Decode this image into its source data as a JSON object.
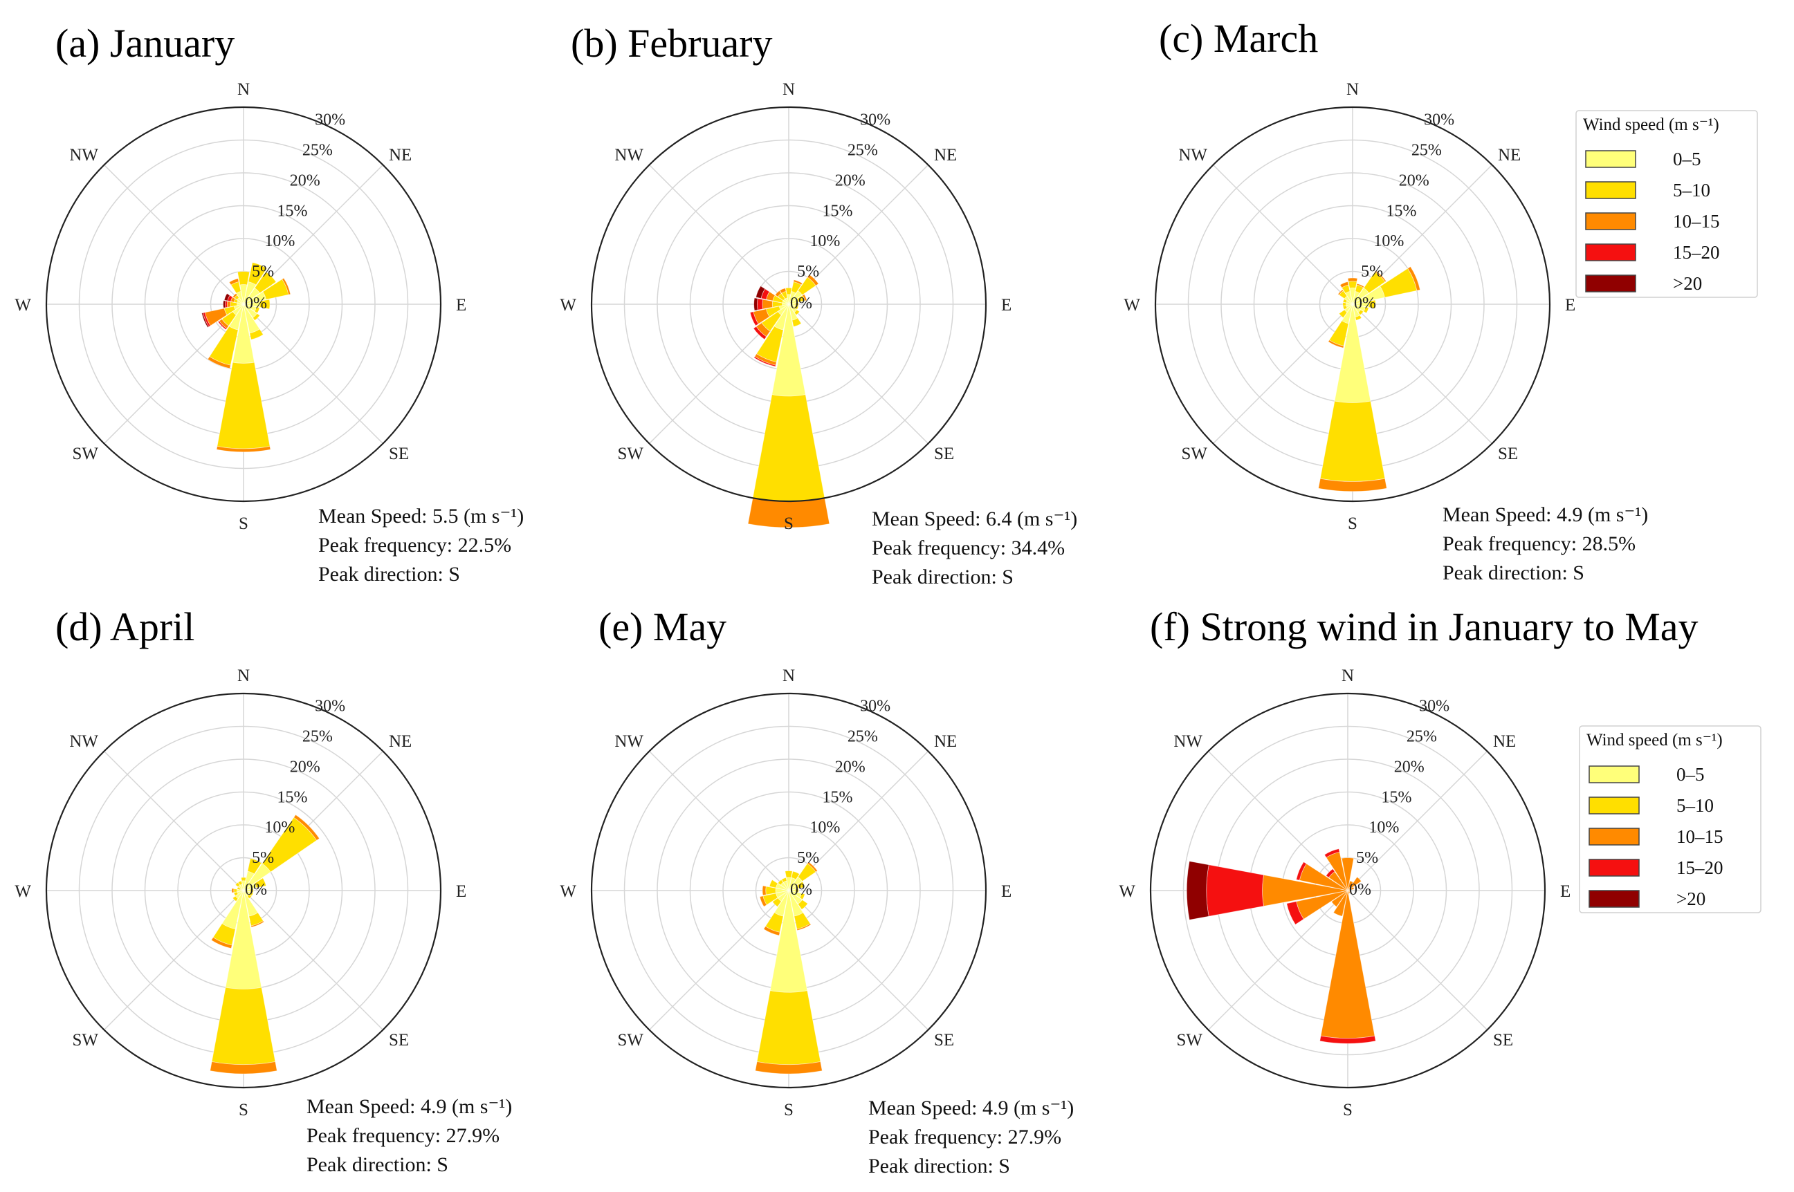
{
  "speed_bins": [
    {
      "label": "0–5",
      "color": "#ffff7a"
    },
    {
      "label": "5–10",
      "color": "#ffdf00"
    },
    {
      "label": "10–15",
      "color": "#ff8a00"
    },
    {
      "label": "15–20",
      "color": "#f51010"
    },
    {
      "label": ">20",
      "color": "#900000"
    }
  ],
  "direction_labels": [
    "N",
    "NE",
    "E",
    "SE",
    "S",
    "SW",
    "W",
    "NW"
  ],
  "radial_labels": [
    "0%",
    "5%",
    "10%",
    "15%",
    "20%",
    "25%",
    "30%"
  ],
  "legend_title": "Wind speed (m s⁻¹)",
  "chart_data": [
    {
      "type": "windrose",
      "title": "(a) January",
      "rmax": 30,
      "stats": [
        "Mean Speed: 5.5 (m s⁻¹)",
        "Peak frequency: 22.5%",
        "Peak direction: S"
      ],
      "directions_deg": [
        0,
        22.5,
        45,
        67.5,
        90,
        112.5,
        135,
        157.5,
        180,
        202.5,
        225,
        247.5,
        270,
        292.5,
        315,
        337.5
      ],
      "series": [
        {
          "bin": "0–5",
          "values": [
            3.0,
            3.5,
            3.0,
            3.5,
            2.5,
            2.0,
            2.5,
            4.5,
            9.0,
            4.0,
            2.0,
            1.5,
            1.0,
            1.0,
            1.2,
            2.0
          ]
        },
        {
          "bin": "5–10",
          "values": [
            2.0,
            3.0,
            3.0,
            3.5,
            1.5,
            0.5,
            0.5,
            1.0,
            13.0,
            5.5,
            2.0,
            1.5,
            1.0,
            0.5,
            0.5,
            1.5
          ]
        },
        {
          "bin": "10–15",
          "values": [
            0,
            0,
            0,
            0.3,
            0,
            0,
            0,
            0,
            0.5,
            0.5,
            0.5,
            3.0,
            0.5,
            0.5,
            0.3,
            0.5
          ]
        },
        {
          "bin": "15–20",
          "values": [
            0,
            0,
            0,
            0,
            0,
            0,
            0,
            0,
            0,
            0,
            0.2,
            0.3,
            0.3,
            0.5,
            0,
            0
          ]
        },
        {
          "bin": ">20",
          "values": [
            0,
            0,
            0,
            0,
            0,
            0,
            0,
            0,
            0,
            0,
            0,
            0.2,
            0.3,
            0.5,
            0,
            0
          ]
        }
      ]
    },
    {
      "type": "windrose",
      "title": "(b) February",
      "rmax": 30,
      "stats": [
        "Mean Speed: 6.4 (m s⁻¹)",
        "Peak frequency: 34.4%",
        "Peak direction: S"
      ],
      "directions_deg": [
        0,
        22.5,
        45,
        67.5,
        90,
        112.5,
        135,
        157.5,
        180,
        202.5,
        225,
        247.5,
        270,
        292.5,
        315,
        337.5
      ],
      "series": [
        {
          "bin": "0–5",
          "values": [
            1.5,
            2.0,
            2.5,
            1.5,
            1.0,
            1.0,
            1.5,
            2.5,
            14.0,
            4.0,
            2.0,
            1.5,
            1.0,
            1.0,
            1.0,
            1.0
          ]
        },
        {
          "bin": "5–10",
          "values": [
            1.0,
            1.5,
            2.5,
            1.0,
            0.5,
            0.5,
            0.5,
            1.0,
            20.0,
            5.0,
            3.0,
            2.0,
            1.5,
            1.5,
            1.0,
            1.0
          ]
        },
        {
          "bin": "10–15",
          "values": [
            0,
            0.3,
            0.5,
            0.3,
            0,
            0,
            0,
            0,
            0.4,
            0.5,
            1.0,
            2.0,
            1.5,
            1.0,
            0.5,
            0.5
          ]
        },
        {
          "bin": "15–20",
          "values": [
            0,
            0,
            0,
            0,
            0,
            0,
            0,
            0,
            0,
            0.2,
            0.5,
            0.5,
            0.8,
            0.8,
            0,
            0
          ]
        },
        {
          "bin": ">20",
          "values": [
            0,
            0,
            0,
            0,
            0,
            0,
            0,
            0,
            0,
            0,
            0,
            0,
            0.5,
            0.8,
            0,
            0
          ]
        }
      ]
    },
    {
      "type": "windrose",
      "title": "(c) March",
      "rmax": 30,
      "stats": [
        "Mean Speed: 4.9 (m s⁻¹)",
        "Peak frequency: 28.5%",
        "Peak direction: S"
      ],
      "directions_deg": [
        0,
        22.5,
        45,
        67.5,
        90,
        112.5,
        135,
        157.5,
        180,
        202.5,
        225,
        247.5,
        270,
        292.5,
        315,
        337.5
      ],
      "series": [
        {
          "bin": "0–5",
          "values": [
            2.5,
            2.0,
            3.0,
            5.0,
            2.5,
            2.0,
            1.5,
            2.0,
            15.0,
            3.0,
            1.5,
            1.0,
            1.0,
            1.0,
            1.5,
            2.0
          ]
        },
        {
          "bin": "5–10",
          "values": [
            1.0,
            1.0,
            3.0,
            5.0,
            1.0,
            0.5,
            0.5,
            0.5,
            12.0,
            3.5,
            1.0,
            0.5,
            0.5,
            0.5,
            1.0,
            1.0
          ]
        },
        {
          "bin": "10–15",
          "values": [
            0.5,
            0.2,
            0.2,
            0.5,
            0,
            0,
            0,
            0,
            1.5,
            0.3,
            0,
            0,
            0,
            0,
            0.2,
            0.5
          ]
        },
        {
          "bin": "15–20",
          "values": [
            0,
            0,
            0,
            0,
            0,
            0,
            0,
            0,
            0,
            0,
            0,
            0,
            0,
            0,
            0,
            0
          ]
        },
        {
          "bin": ">20",
          "values": [
            0,
            0,
            0,
            0,
            0,
            0,
            0,
            0,
            0,
            0,
            0,
            0,
            0,
            0,
            0,
            0
          ]
        }
      ]
    },
    {
      "type": "windrose",
      "title": "(d) April",
      "rmax": 30,
      "stats": [
        "Mean Speed: 4.9 (m s⁻¹)",
        "Peak frequency: 27.9%",
        "Peak direction: S"
      ],
      "directions_deg": [
        0,
        22.5,
        45,
        67.5,
        90,
        112.5,
        135,
        157.5,
        180,
        202.5,
        225,
        247.5,
        270,
        292.5,
        315,
        337.5
      ],
      "series": [
        {
          "bin": "0–5",
          "values": [
            1.5,
            3.0,
            5.0,
            2.0,
            1.0,
            1.0,
            1.0,
            4.0,
            15.0,
            6.0,
            1.5,
            1.0,
            1.0,
            0.5,
            1.0,
            1.0
          ]
        },
        {
          "bin": "5–10",
          "values": [
            0.5,
            2.0,
            8.5,
            1.5,
            0.5,
            0.5,
            0.5,
            1.5,
            11.5,
            2.5,
            0.5,
            0.5,
            0.5,
            0.5,
            0.5,
            0.5
          ]
        },
        {
          "bin": "10–15",
          "values": [
            0,
            0,
            0.5,
            0,
            0,
            0,
            0,
            0.2,
            1.4,
            0.5,
            0,
            0,
            0.3,
            0,
            0,
            0
          ]
        },
        {
          "bin": "15–20",
          "values": [
            0,
            0,
            0,
            0,
            0,
            0,
            0,
            0,
            0,
            0,
            0,
            0,
            0,
            0,
            0,
            0
          ]
        },
        {
          "bin": ">20",
          "values": [
            0,
            0,
            0,
            0,
            0,
            0,
            0,
            0,
            0,
            0,
            0,
            0,
            0,
            0,
            0,
            0
          ]
        }
      ]
    },
    {
      "type": "windrose",
      "title": "(e) May",
      "rmax": 30,
      "stats": [
        "Mean Speed: 4.9 (m s⁻¹)",
        "Peak frequency: 27.9%",
        "Peak direction: S"
      ],
      "directions_deg": [
        0,
        22.5,
        45,
        67.5,
        90,
        112.5,
        135,
        157.5,
        180,
        202.5,
        225,
        247.5,
        270,
        292.5,
        315,
        337.5
      ],
      "series": [
        {
          "bin": "0–5",
          "values": [
            2.0,
            2.0,
            2.5,
            1.5,
            1.0,
            2.0,
            2.5,
            4.0,
            15.5,
            4.0,
            2.0,
            2.0,
            2.0,
            2.0,
            1.5,
            1.5
          ]
        },
        {
          "bin": "5–10",
          "values": [
            1.0,
            1.0,
            2.5,
            1.0,
            0.5,
            0.5,
            1.0,
            2.0,
            11.0,
            2.5,
            1.0,
            2.0,
            1.5,
            1.0,
            0.5,
            0.5
          ]
        },
        {
          "bin": "10–15",
          "values": [
            0,
            0,
            0.3,
            0,
            0,
            0,
            0,
            0.2,
            1.4,
            0.5,
            0,
            0.5,
            0.5,
            0,
            0,
            0
          ]
        },
        {
          "bin": "15–20",
          "values": [
            0,
            0,
            0,
            0,
            0,
            0,
            0,
            0,
            0,
            0,
            0,
            0,
            0,
            0,
            0,
            0
          ]
        },
        {
          "bin": ">20",
          "values": [
            0,
            0,
            0,
            0,
            0,
            0,
            0,
            0,
            0,
            0,
            0,
            0,
            0,
            0,
            0,
            0
          ]
        }
      ]
    },
    {
      "type": "windrose",
      "title": "(f) Strong wind in January to May",
      "rmax": 30,
      "stats": [],
      "directions_deg": [
        0,
        22.5,
        45,
        67.5,
        90,
        112.5,
        135,
        157.5,
        180,
        202.5,
        225,
        247.5,
        270,
        292.5,
        315,
        337.5
      ],
      "series": [
        {
          "bin": "0–5",
          "values": [
            0,
            0,
            0,
            0,
            0,
            0,
            0,
            0,
            0,
            0,
            0,
            0,
            0,
            0,
            0,
            0
          ]
        },
        {
          "bin": "5–10",
          "values": [
            0,
            0,
            0,
            0,
            0,
            0,
            0,
            0,
            0,
            0,
            0,
            0,
            0,
            0,
            0,
            0
          ]
        },
        {
          "bin": "10–15",
          "values": [
            5.0,
            1.5,
            2.5,
            1.0,
            0.5,
            0.5,
            0.5,
            0.5,
            22.5,
            4.0,
            3.0,
            8.0,
            13.0,
            7.5,
            3.5,
            6.0
          ]
        },
        {
          "bin": "15–20",
          "values": [
            0,
            0,
            0,
            0,
            0,
            0,
            0,
            0,
            0.8,
            0,
            0,
            1.5,
            8.5,
            0.5,
            0.5,
            0.5
          ]
        },
        {
          "bin": ">20",
          "values": [
            0,
            0,
            0,
            0,
            0,
            0,
            0,
            0,
            0,
            0,
            0,
            0,
            3.0,
            0,
            0,
            0
          ]
        }
      ]
    }
  ]
}
